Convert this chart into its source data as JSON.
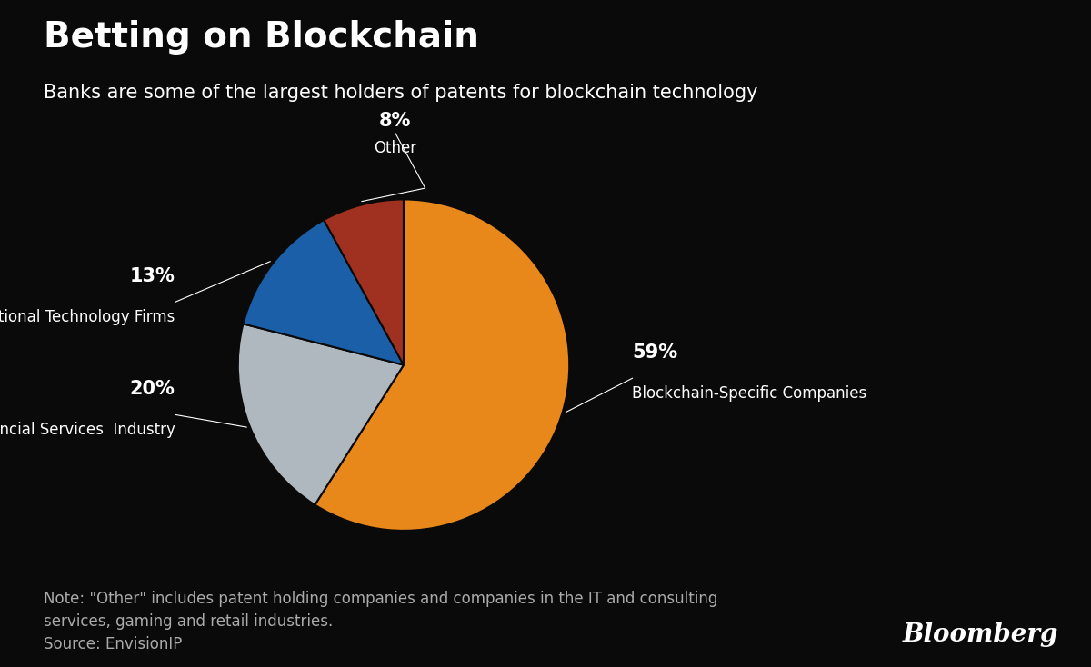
{
  "title": "Betting on Blockchain",
  "subtitle": "Banks are some of the largest holders of patents for blockchain technology",
  "note": "Note: \"Other\" includes patent holding companies and companies in the IT and consulting\nservices, gaming and retail industries.\nSource: EnvisionIP",
  "bloomberg_label": "Bloomberg",
  "slices": [
    {
      "label": "Blockchain-Specific Companies",
      "pct": 59,
      "color": "#E8871A"
    },
    {
      "label": "Financial Services Industry",
      "pct": 20,
      "color": "#B0B8BF"
    },
    {
      "label": "Traditional Technology Firms",
      "pct": 13,
      "color": "#1B5FA8"
    },
    {
      "label": "Other",
      "pct": 8,
      "color": "#A03020"
    }
  ],
  "bg_color": "#0a0a0a",
  "text_color": "#ffffff",
  "note_color": "#aaaaaa",
  "title_fontsize": 28,
  "subtitle_fontsize": 15,
  "note_fontsize": 12,
  "bloomberg_fontsize": 20,
  "pct_fontsize": 15,
  "label_fontsize": 12
}
